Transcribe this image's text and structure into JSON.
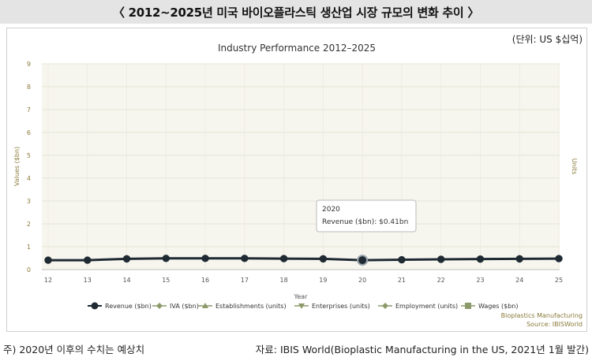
{
  "banner": {
    "title": "〈 2012~2025년 미국 바이오플라스틱 생산업 시장 규모의 변화 추이 〉"
  },
  "unit_note": "(단위: US $십억)",
  "footnote": "주) 2020년 이후의 수치는 예상치",
  "source_text": "자료: IBIS World(Bioplastic Manufacturing in the US, 2021년 1월 발간)",
  "credit": {
    "line1": "Bioplastics Manufacturing",
    "line2": "Source: IBISWorld"
  },
  "tooltip": {
    "year": "2020",
    "label": "Revenue ($bn): $0.41bn"
  },
  "colors": {
    "revenue": "#1f2a33",
    "plot_bg": "#f7f6ee",
    "axis_text": "#8a7a3a",
    "legend_marker": "#8c9a6a"
  },
  "chart_data": {
    "type": "line",
    "title": "Industry Performance 2012–2025",
    "xlabel": "Year",
    "ylabel": "Values ($bn)",
    "y2label": "Units",
    "x": [
      12,
      13,
      14,
      15,
      16,
      17,
      18,
      19,
      20,
      21,
      22,
      23,
      24,
      25
    ],
    "ylim": [
      0,
      9
    ],
    "yticks": [
      0,
      1,
      2,
      3,
      4,
      5,
      6,
      7,
      8,
      9
    ],
    "grid": true,
    "legend_position": "bottom",
    "series": [
      {
        "name": "Revenue ($bn)",
        "values": [
          0.41,
          0.41,
          0.47,
          0.49,
          0.49,
          0.49,
          0.48,
          0.47,
          0.41,
          0.43,
          0.45,
          0.46,
          0.47,
          0.48
        ]
      }
    ],
    "legend": [
      {
        "name": "Revenue ($bn)",
        "marker": "circle"
      },
      {
        "name": "IVA ($bn)",
        "marker": "diamond"
      },
      {
        "name": "Establishments (units)",
        "marker": "triangle"
      },
      {
        "name": "Enterprises (units)",
        "marker": "triangle-down"
      },
      {
        "name": "Employment (units)",
        "marker": "diamond"
      },
      {
        "name": "Wages ($bn)",
        "marker": "square"
      }
    ],
    "highlight_x": 20
  }
}
